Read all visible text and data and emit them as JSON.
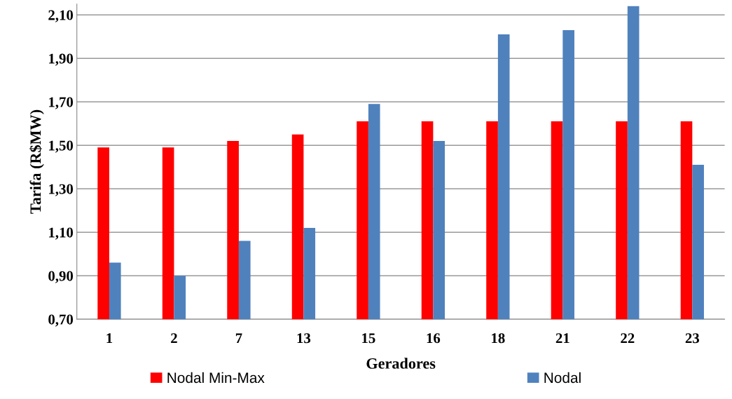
{
  "chart_data": {
    "type": "bar",
    "xlabel": "Geradores",
    "ylabel": "Tarifa (R$MW)",
    "categories": [
      "1",
      "2",
      "7",
      "13",
      "15",
      "16",
      "18",
      "21",
      "22",
      "23"
    ],
    "series": [
      {
        "name": "Nodal Min-Max",
        "color": "#ff0000",
        "values": [
          1.49,
          1.49,
          1.52,
          1.55,
          1.61,
          1.61,
          1.61,
          1.61,
          1.61,
          1.61
        ]
      },
      {
        "name": "Nodal",
        "color": "#4f81bd",
        "values": [
          0.96,
          0.9,
          1.06,
          1.12,
          1.69,
          1.52,
          2.01,
          2.03,
          2.14,
          1.41
        ]
      }
    ],
    "ylim": [
      0.7,
      2.15
    ],
    "yticks": [
      {
        "value": 0.7,
        "label": "0,70"
      },
      {
        "value": 0.9,
        "label": "0,90"
      },
      {
        "value": 1.1,
        "label": "1,10"
      },
      {
        "value": 1.3,
        "label": "1,30"
      },
      {
        "value": 1.5,
        "label": "1,50"
      },
      {
        "value": 1.7,
        "label": "1,70"
      },
      {
        "value": 1.9,
        "label": "1,90"
      },
      {
        "value": 2.1,
        "label": "2,10"
      }
    ],
    "grid": "y",
    "legend": "bottom"
  }
}
